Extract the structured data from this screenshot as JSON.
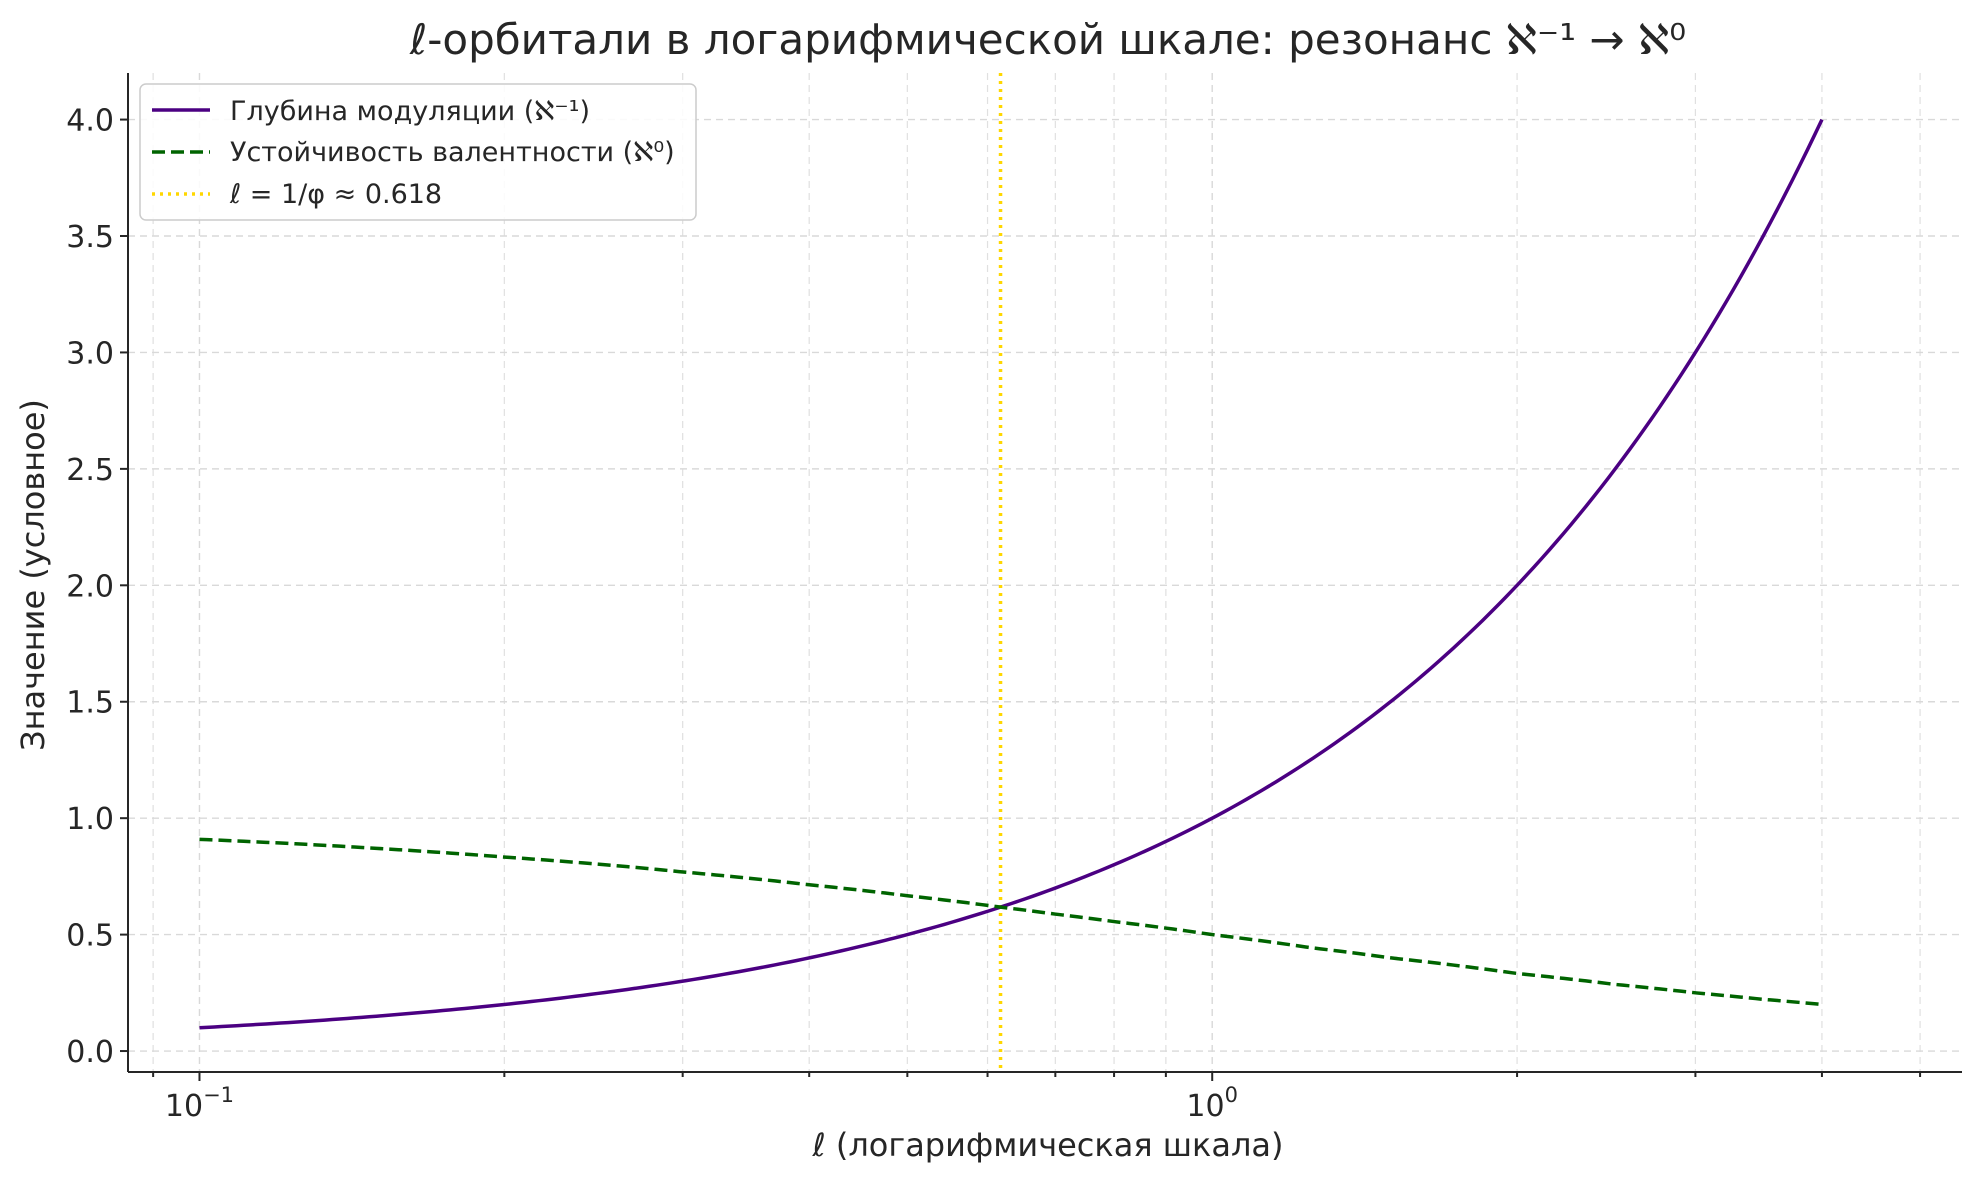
{
  "chart_data": {
    "type": "line",
    "title": "ℓ-орбитали в логарифмической шкале: резонанс ℵ⁻¹ → ℵ⁰",
    "xlabel": "ℓ (логарифмическая шкала)",
    "ylabel": "Значение (условное)",
    "xscale": "log",
    "xlim": [
      0.085,
      5.5
    ],
    "ylim": [
      -0.09,
      4.2
    ],
    "x_ticks": [
      {
        "value": 0.1,
        "label": "10",
        "exp": "−1"
      },
      {
        "value": 1,
        "label": "10",
        "exp": "0"
      }
    ],
    "y_ticks": [
      {
        "value": 0,
        "label": "0.0"
      },
      {
        "value": 0.5,
        "label": "0.5"
      },
      {
        "value": 1,
        "label": "1.0"
      },
      {
        "value": 1.5,
        "label": "1.5"
      },
      {
        "value": 2,
        "label": "2.0"
      },
      {
        "value": 2.5,
        "label": "2.5"
      },
      {
        "value": 3,
        "label": "3.0"
      },
      {
        "value": 3.5,
        "label": "3.5"
      },
      {
        "value": 4,
        "label": "4.0"
      }
    ],
    "grid": true,
    "legend_position": "top-left",
    "series": [
      {
        "name": "Глубина модуляции (ℵ⁻¹)",
        "style": "solid",
        "color": "#4b0082",
        "x": [
          0.1,
          0.15,
          0.2,
          0.3,
          0.4,
          0.5,
          0.618,
          0.7,
          0.8,
          1.0,
          1.25,
          1.5,
          2.0,
          2.5,
          3.0,
          3.5,
          4.0
        ],
        "y": [
          0.1,
          0.15,
          0.2,
          0.3,
          0.4,
          0.5,
          0.618,
          0.7,
          0.8,
          1.0,
          1.25,
          1.5,
          2.0,
          2.5,
          3.0,
          3.5,
          4.0
        ]
      },
      {
        "name": "Устойчивость валентности (ℵ⁰)",
        "style": "dashed",
        "color": "#006400",
        "x": [
          0.1,
          0.15,
          0.2,
          0.3,
          0.4,
          0.5,
          0.618,
          0.7,
          0.8,
          1.0,
          1.25,
          1.5,
          2.0,
          2.5,
          3.0,
          3.5,
          4.0
        ],
        "y": [
          0.909,
          0.87,
          0.833,
          0.769,
          0.714,
          0.667,
          0.618,
          0.588,
          0.556,
          0.5,
          0.444,
          0.4,
          0.333,
          0.286,
          0.25,
          0.222,
          0.2
        ]
      }
    ],
    "reference_line": {
      "name": "ℓ = 1/φ ≈ 0.618",
      "style": "dotted",
      "color": "#ffd700",
      "x": 0.618
    }
  }
}
